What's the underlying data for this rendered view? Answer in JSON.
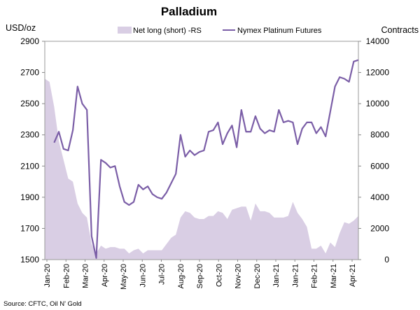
{
  "chart_data": {
    "type": "line",
    "title": "Palladium",
    "left_axis_label": "USD/oz",
    "right_axis_label": "Contracts",
    "source": "Source: CFTC, Oil N' Gold",
    "left_ylim": [
      1500,
      2900
    ],
    "left_ticks": [
      1500,
      1700,
      1900,
      2100,
      2300,
      2500,
      2700,
      2900
    ],
    "right_ylim": [
      0,
      14000
    ],
    "right_ticks": [
      0,
      2000,
      4000,
      6000,
      8000,
      10000,
      12000,
      14000
    ],
    "x_tick_labels": [
      "Jan-20",
      "Feb-20",
      "Mar-20",
      "Apr-20",
      "May-20",
      "Jun-20",
      "Jul-20",
      "Aug-20",
      "Sep-20",
      "Oct-20",
      "Nov-20",
      "Dec-20",
      "Jan-21",
      "Jan-21",
      "Feb-21",
      "Mar-21",
      "Apr-21"
    ],
    "legend": {
      "net_long": "Net long (short) -RS",
      "futures": "Nymex Platinum Futures"
    },
    "colors": {
      "area": "#d9cee4",
      "line": "#7b5ea7",
      "axis": "#888888",
      "frame": "#999999"
    },
    "series": [
      {
        "name": "Net long (short) -RS",
        "axis": "right",
        "type": "area",
        "values": [
          11600,
          11400,
          9800,
          7600,
          6400,
          5200,
          5000,
          3600,
          3000,
          2700,
          1000,
          400,
          900,
          700,
          800,
          800,
          700,
          700,
          400,
          600,
          700,
          400,
          600,
          600,
          600,
          600,
          1000,
          1400,
          1600,
          2700,
          3100,
          3000,
          2700,
          2600,
          2600,
          2800,
          2800,
          3100,
          3000,
          2600,
          3200,
          3300,
          3400,
          3400,
          2500,
          3600,
          3100,
          3100,
          3000,
          2700,
          2700,
          2700,
          2800,
          3700,
          3000,
          2600,
          2100,
          700,
          700,
          900,
          400,
          1100,
          800,
          1700,
          2400,
          2300,
          2500,
          2800
        ]
      },
      {
        "name": "Nymex Platinum Futures",
        "axis": "left",
        "type": "line",
        "values": [
          null,
          null,
          2250,
          2320,
          2210,
          2200,
          2330,
          2610,
          2500,
          2460,
          1650,
          1510,
          2140,
          2120,
          2090,
          2100,
          1970,
          1870,
          1850,
          1870,
          1980,
          1950,
          1970,
          1920,
          1900,
          1890,
          1930,
          1990,
          2050,
          2300,
          2160,
          2200,
          2170,
          2190,
          2200,
          2320,
          2330,
          2380,
          2240,
          2310,
          2360,
          2220,
          2460,
          2320,
          2320,
          2420,
          2340,
          2310,
          2330,
          2320,
          2460,
          2380,
          2390,
          2380,
          2240,
          2340,
          2380,
          2380,
          2310,
          2350,
          2290,
          2450,
          2610,
          2670,
          2660,
          2640,
          2770,
          2780
        ]
      }
    ]
  }
}
